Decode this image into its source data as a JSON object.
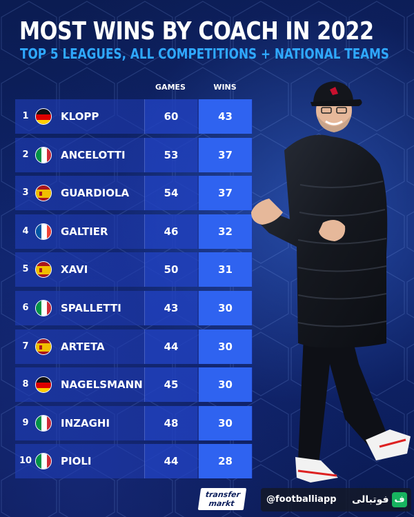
{
  "header": {
    "title": "MOST WINS BY COACH IN 2022",
    "subtitle": "TOP 5 LEAGUES, ALL COMPETITIONS + NATIONAL TEAMS"
  },
  "columns": {
    "games": "GAMES",
    "wins": "WINS"
  },
  "rows": [
    {
      "rank": "1",
      "country": "germany",
      "name": "KLOPP",
      "games": "60",
      "wins": "43"
    },
    {
      "rank": "2",
      "country": "italy",
      "name": "ANCELOTTI",
      "games": "53",
      "wins": "37"
    },
    {
      "rank": "3",
      "country": "spain",
      "name": "GUARDIOLA",
      "games": "54",
      "wins": "37"
    },
    {
      "rank": "4",
      "country": "france",
      "name": "GALTIER",
      "games": "46",
      "wins": "32"
    },
    {
      "rank": "5",
      "country": "spain",
      "name": "XAVI",
      "games": "50",
      "wins": "31"
    },
    {
      "rank": "6",
      "country": "italy",
      "name": "SPALLETTI",
      "games": "43",
      "wins": "30"
    },
    {
      "rank": "7",
      "country": "spain",
      "name": "ARTETA",
      "games": "44",
      "wins": "30"
    },
    {
      "rank": "8",
      "country": "germany",
      "name": "NAGELSMANN",
      "games": "45",
      "wins": "30"
    },
    {
      "rank": "9",
      "country": "italy",
      "name": "INZAGHI",
      "games": "48",
      "wins": "30"
    },
    {
      "rank": "10",
      "country": "italy",
      "name": "PIOLI",
      "games": "44",
      "wins": "28"
    }
  ],
  "footer": {
    "logo_line1": "transfer",
    "logo_line2": "markt",
    "handle": "@footballiapp",
    "brand": "فوتبالی",
    "brand_icon": "ف"
  },
  "colors": {
    "accent": "#2fa8ff",
    "wins_bg": "#2f63f0",
    "row_bg": "#1e3cb4",
    "background": "#0b1c52"
  },
  "icons": {
    "flags": [
      "germany-flag-icon",
      "italy-flag-icon",
      "spain-flag-icon",
      "france-flag-icon"
    ]
  }
}
